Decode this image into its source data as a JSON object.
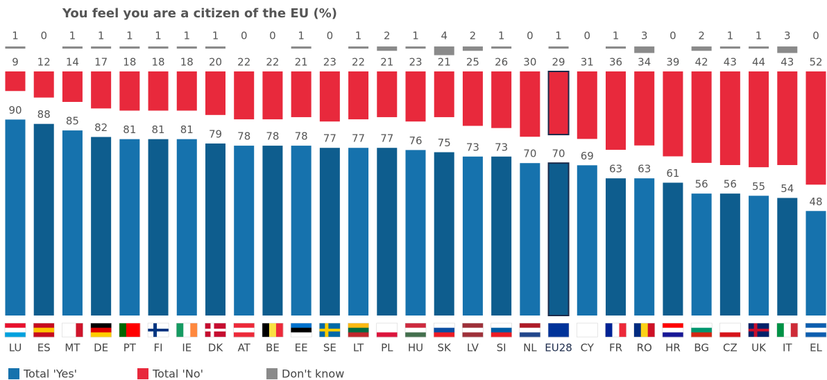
{
  "chart_data": {
    "type": "bar",
    "title": "You feel you are a citizen of the EU  (%)",
    "categories": [
      "LU",
      "ES",
      "MT",
      "DE",
      "PT",
      "FI",
      "IE",
      "DK",
      "AT",
      "BE",
      "EE",
      "SE",
      "LT",
      "PL",
      "HU",
      "SK",
      "LV",
      "SI",
      "NL",
      "EU28",
      "CY",
      "FR",
      "RO",
      "HR",
      "BG",
      "CZ",
      "UK",
      "IT",
      "EL"
    ],
    "highlight": "EU28",
    "series": [
      {
        "name": "Total 'Yes'",
        "color": "#1672ad",
        "values": [
          90,
          88,
          85,
          82,
          81,
          81,
          81,
          79,
          78,
          78,
          78,
          77,
          77,
          77,
          76,
          75,
          73,
          73,
          70,
          70,
          69,
          63,
          63,
          61,
          56,
          56,
          55,
          54,
          48
        ]
      },
      {
        "name": "Total 'No'",
        "color": "#e8293c",
        "values": [
          9,
          12,
          14,
          17,
          18,
          18,
          18,
          20,
          22,
          22,
          21,
          23,
          22,
          21,
          23,
          21,
          25,
          26,
          30,
          29,
          31,
          36,
          34,
          39,
          42,
          43,
          44,
          43,
          52
        ]
      },
      {
        "name": "Don't know",
        "color": "#8a8a8a",
        "values": [
          1,
          0,
          1,
          1,
          1,
          1,
          1,
          1,
          0,
          0,
          1,
          0,
          1,
          2,
          1,
          4,
          2,
          1,
          0,
          1,
          0,
          1,
          3,
          0,
          2,
          1,
          1,
          3,
          0
        ]
      }
    ]
  }
}
